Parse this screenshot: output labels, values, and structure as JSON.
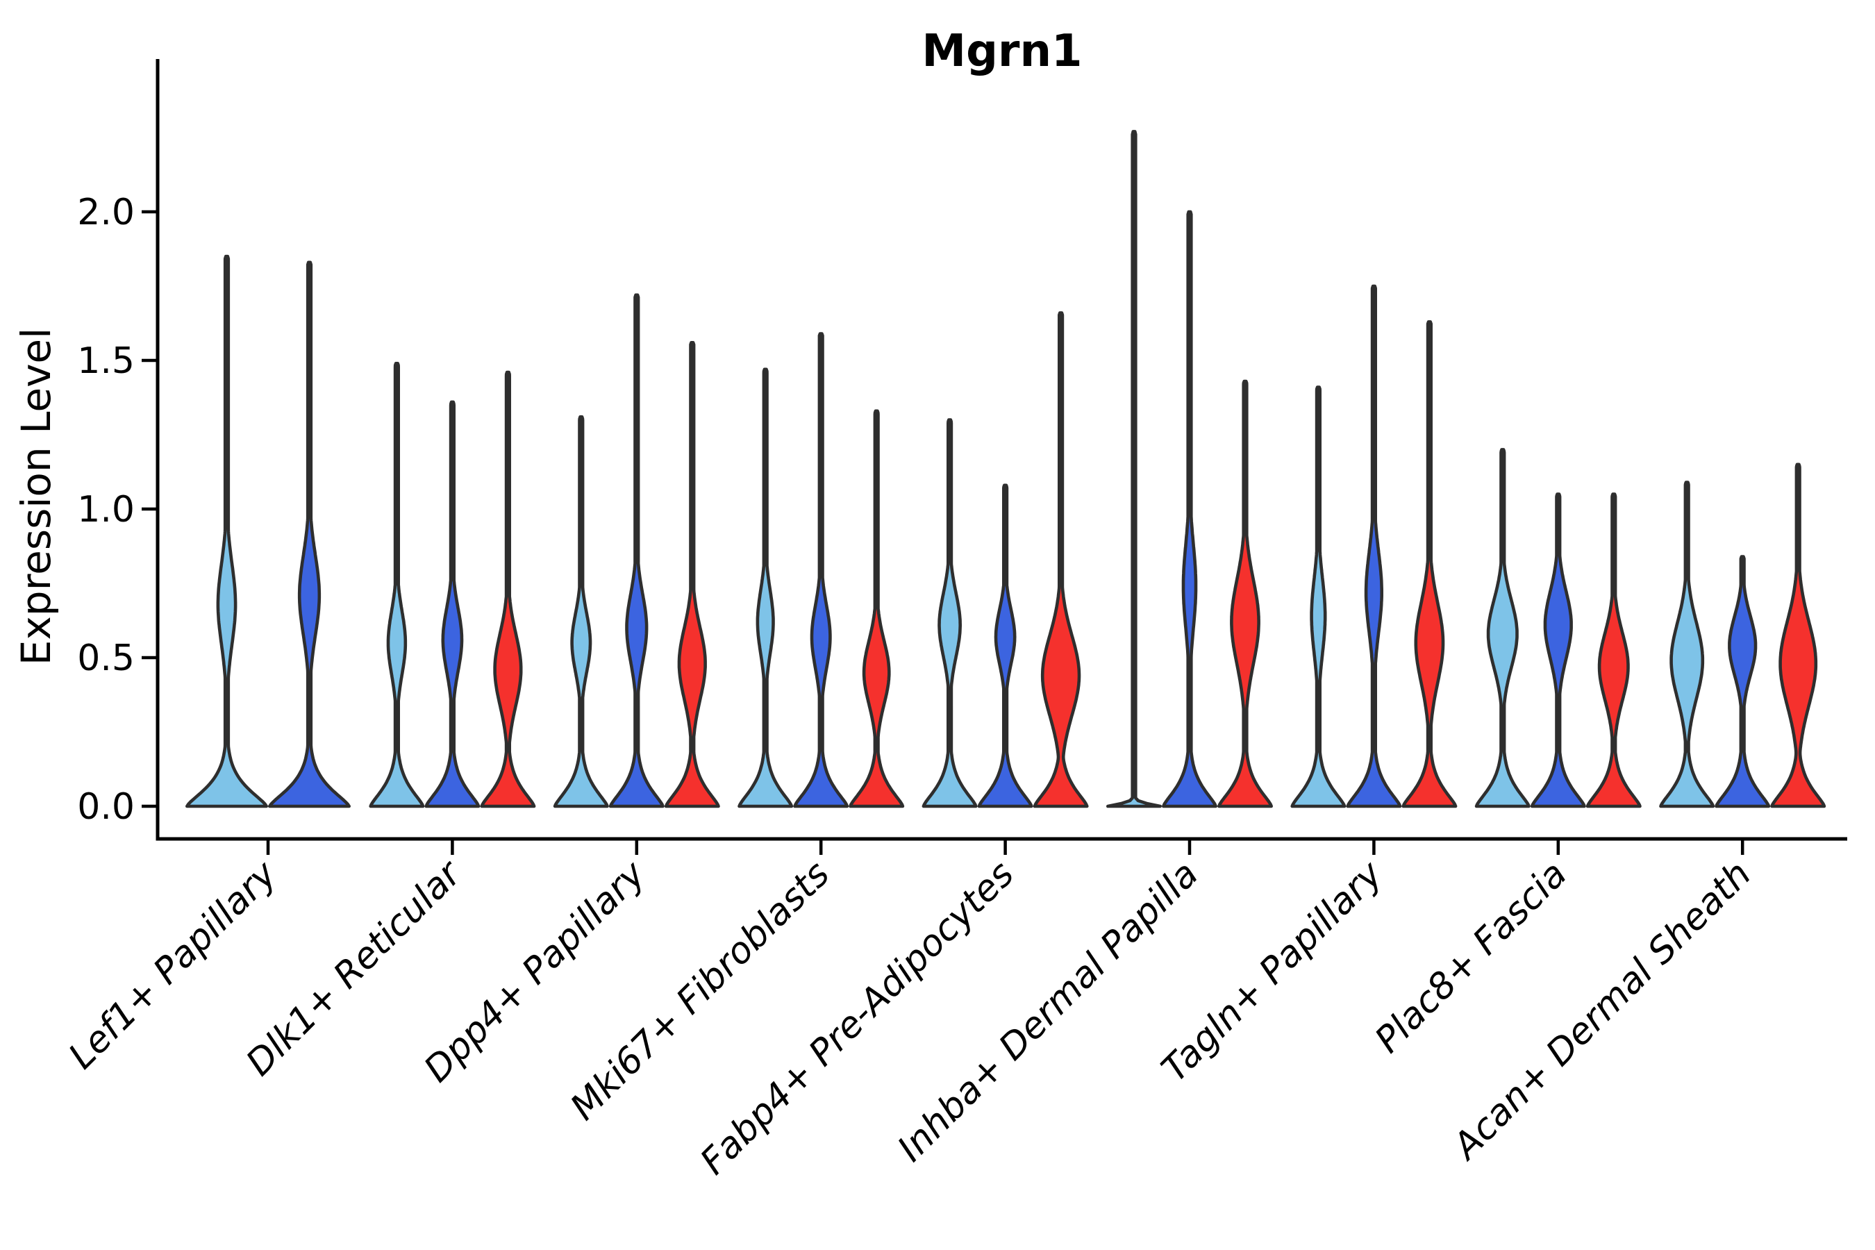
{
  "title": "Mgrn1",
  "y_axis": {
    "label": "Expression Level",
    "tick_labels": [
      "0.0",
      "0.5",
      "1.0",
      "1.5",
      "2.0"
    ],
    "tick_values": [
      0.0,
      0.5,
      1.0,
      1.5,
      2.0
    ]
  },
  "palette": {
    "light_blue": "#7EC3E8",
    "dark_blue": "#3C64E0",
    "red": "#F5312D",
    "outline": "#2E2E2E",
    "axis": "#000000",
    "background": "#FFFFFF"
  },
  "chart_data": {
    "type": "violin",
    "title": "Mgrn1",
    "xlabel": "",
    "ylabel": "Expression Level",
    "ylim": [
      0,
      2.5
    ],
    "grid": false,
    "legend": null,
    "series_colors_order": [
      "light_blue",
      "dark_blue",
      "red"
    ],
    "categories": [
      "Lef1+ Papillary",
      "Dlk1+ Reticular",
      "Dpp4+ Papillary",
      "Mki67+ Fibroblasts",
      "Fabp4+ Pre-Adipocytes",
      "Inhba+ Dermal Papilla",
      "Tagln+ Papillary",
      "Plac8+ Fascia",
      "Acan+ Dermal Sheath"
    ],
    "groups": [
      {
        "category": "Lef1+ Papillary",
        "violins": [
          {
            "color": "light_blue",
            "max": 1.85,
            "bulge_center": 0.68,
            "bulge_sigma": 0.19,
            "bulge_amp": 0.22,
            "base_spread": 0.085
          },
          {
            "color": "dark_blue",
            "max": 1.83,
            "bulge_center": 0.71,
            "bulge_sigma": 0.19,
            "bulge_amp": 0.25,
            "base_spread": 0.085
          }
        ]
      },
      {
        "category": "Dlk1+ Reticular",
        "violins": [
          {
            "color": "light_blue",
            "max": 1.49,
            "bulge_center": 0.55,
            "bulge_sigma": 0.15,
            "bulge_amp": 0.33,
            "base_spread": 0.085
          },
          {
            "color": "dark_blue",
            "max": 1.36,
            "bulge_center": 0.56,
            "bulge_sigma": 0.15,
            "bulge_amp": 0.36,
            "base_spread": 0.085
          },
          {
            "color": "red",
            "max": 1.46,
            "bulge_center": 0.46,
            "bulge_sigma": 0.17,
            "bulge_amp": 0.5,
            "base_spread": 0.085
          }
        ]
      },
      {
        "category": "Dpp4+ Papillary",
        "violins": [
          {
            "color": "light_blue",
            "max": 1.31,
            "bulge_center": 0.55,
            "bulge_sigma": 0.14,
            "bulge_amp": 0.35,
            "base_spread": 0.085
          },
          {
            "color": "dark_blue",
            "max": 1.72,
            "bulge_center": 0.6,
            "bulge_sigma": 0.16,
            "bulge_amp": 0.38,
            "base_spread": 0.085
          },
          {
            "color": "red",
            "max": 1.56,
            "bulge_center": 0.48,
            "bulge_sigma": 0.17,
            "bulge_amp": 0.5,
            "base_spread": 0.085
          }
        ]
      },
      {
        "category": "Mki67+ Fibroblasts",
        "violins": [
          {
            "color": "light_blue",
            "max": 1.47,
            "bulge_center": 0.62,
            "bulge_sigma": 0.15,
            "bulge_amp": 0.3,
            "base_spread": 0.085
          },
          {
            "color": "dark_blue",
            "max": 1.59,
            "bulge_center": 0.57,
            "bulge_sigma": 0.15,
            "bulge_amp": 0.35,
            "base_spread": 0.085
          },
          {
            "color": "red",
            "max": 1.33,
            "bulge_center": 0.45,
            "bulge_sigma": 0.15,
            "bulge_amp": 0.48,
            "base_spread": 0.085
          }
        ]
      },
      {
        "category": "Fabp4+ Pre-Adipocytes",
        "violins": [
          {
            "color": "light_blue",
            "max": 1.3,
            "bulge_center": 0.61,
            "bulge_sigma": 0.15,
            "bulge_amp": 0.4,
            "base_spread": 0.085
          },
          {
            "color": "dark_blue",
            "max": 1.08,
            "bulge_center": 0.57,
            "bulge_sigma": 0.13,
            "bulge_amp": 0.36,
            "base_spread": 0.085
          },
          {
            "color": "red",
            "max": 1.66,
            "bulge_center": 0.44,
            "bulge_sigma": 0.19,
            "bulge_amp": 0.7,
            "base_spread": 0.085
          }
        ]
      },
      {
        "category": "Inhba+ Dermal Papilla",
        "violins": [
          {
            "color": "light_blue",
            "max": 2.27,
            "bulge_center": 0.0,
            "bulge_sigma": 0.1,
            "bulge_amp": 0.0,
            "base_spread": 0.012
          },
          {
            "color": "dark_blue",
            "max": 2.0,
            "bulge_center": 0.74,
            "bulge_sigma": 0.2,
            "bulge_amp": 0.24,
            "base_spread": 0.085
          },
          {
            "color": "red",
            "max": 1.43,
            "bulge_center": 0.62,
            "bulge_sigma": 0.2,
            "bulge_amp": 0.52,
            "base_spread": 0.085
          }
        ]
      },
      {
        "category": "Tagln+ Papillary",
        "violins": [
          {
            "color": "light_blue",
            "max": 1.41,
            "bulge_center": 0.64,
            "bulge_sigma": 0.18,
            "bulge_amp": 0.26,
            "base_spread": 0.085
          },
          {
            "color": "dark_blue",
            "max": 1.75,
            "bulge_center": 0.72,
            "bulge_sigma": 0.19,
            "bulge_amp": 0.3,
            "base_spread": 0.085
          },
          {
            "color": "red",
            "max": 1.63,
            "bulge_center": 0.55,
            "bulge_sigma": 0.19,
            "bulge_amp": 0.52,
            "base_spread": 0.085
          }
        ]
      },
      {
        "category": "Plac8+ Fascia",
        "violins": [
          {
            "color": "light_blue",
            "max": 1.2,
            "bulge_center": 0.58,
            "bulge_sigma": 0.16,
            "bulge_amp": 0.55,
            "base_spread": 0.085
          },
          {
            "color": "dark_blue",
            "max": 1.05,
            "bulge_center": 0.61,
            "bulge_sigma": 0.16,
            "bulge_amp": 0.5,
            "base_spread": 0.085
          },
          {
            "color": "red",
            "max": 1.05,
            "bulge_center": 0.47,
            "bulge_sigma": 0.16,
            "bulge_amp": 0.55,
            "base_spread": 0.085
          }
        ]
      },
      {
        "category": "Acan+ Dermal Sheath",
        "violins": [
          {
            "color": "light_blue",
            "max": 1.09,
            "bulge_center": 0.49,
            "bulge_sigma": 0.18,
            "bulge_amp": 0.6,
            "base_spread": 0.085
          },
          {
            "color": "dark_blue",
            "max": 0.84,
            "bulge_center": 0.54,
            "bulge_sigma": 0.14,
            "bulge_amp": 0.5,
            "base_spread": 0.085
          },
          {
            "color": "red",
            "max": 1.15,
            "bulge_center": 0.48,
            "bulge_sigma": 0.2,
            "bulge_amp": 0.68,
            "base_spread": 0.085
          }
        ]
      }
    ]
  }
}
